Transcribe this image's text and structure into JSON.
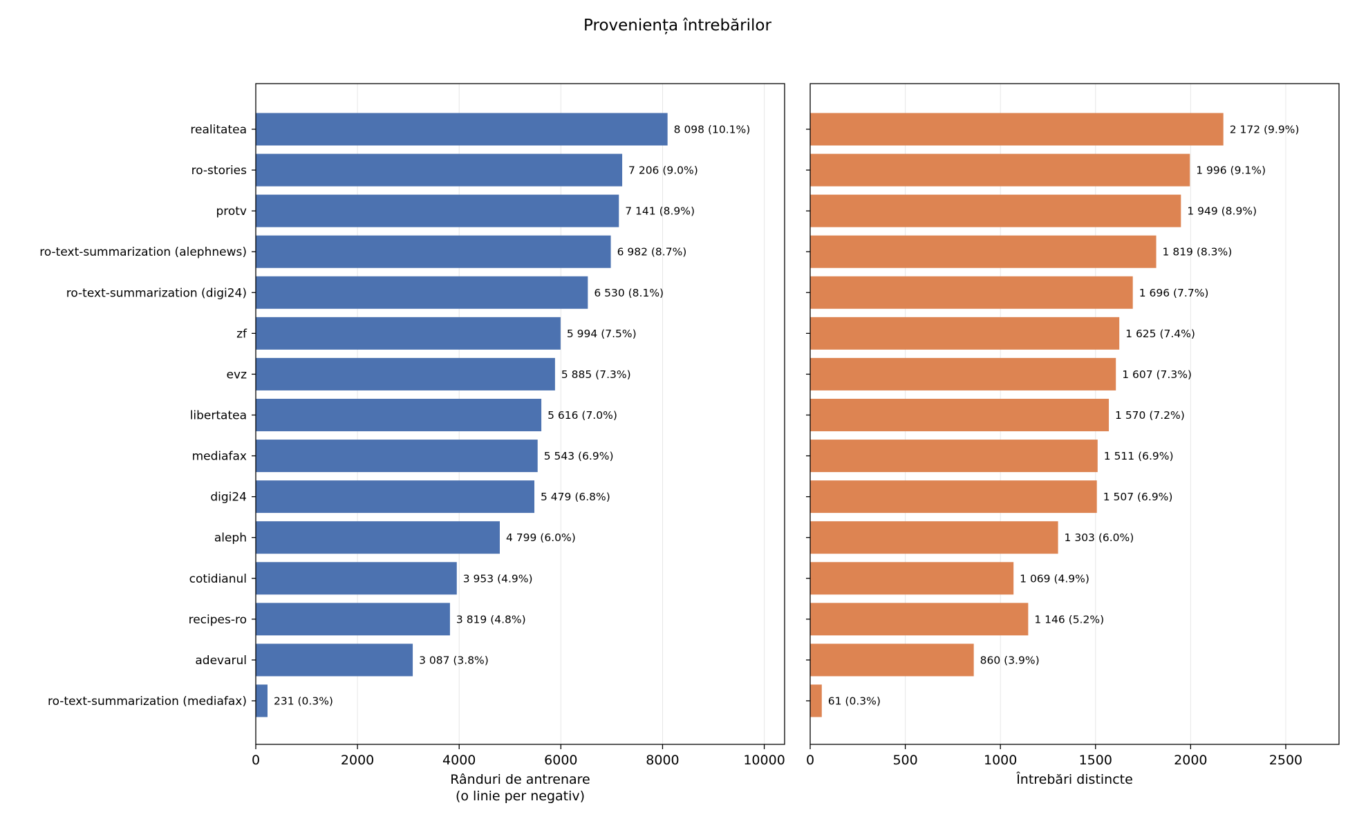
{
  "figure": {
    "title": "Proveniența întrebărilor"
  },
  "chart_data": [
    {
      "type": "bar",
      "orientation": "horizontal",
      "color": "#4c72b0",
      "xlabel": [
        "Rânduri de antrenare",
        "(o linie per negativ)"
      ],
      "xlim": [
        0,
        10400
      ],
      "xticks": [
        0,
        2000,
        4000,
        6000,
        8000,
        10000
      ],
      "grid": "vertical",
      "categories": [
        "realitatea",
        "ro-stories",
        "protv",
        "ro-text-summarization (alephnews)",
        "ro-text-summarization (digi24)",
        "zf",
        "evz",
        "libertatea",
        "mediafax",
        "digi24",
        "aleph",
        "cotidianul",
        "recipes-ro",
        "adevarul",
        "ro-text-summarization (mediafax)"
      ],
      "values": [
        8098,
        7206,
        7141,
        6982,
        6530,
        5994,
        5885,
        5616,
        5543,
        5479,
        4799,
        3953,
        3819,
        3087,
        231
      ],
      "data_labels": [
        "8 098  (10.1%)",
        "7 206  (9.0%)",
        "7 141  (8.9%)",
        "6 982  (8.7%)",
        "6 530  (8.1%)",
        "5 994  (7.5%)",
        "5 885  (7.3%)",
        "5 616  (7.0%)",
        "5 543  (6.9%)",
        "5 479  (6.8%)",
        "4 799  (6.0%)",
        "3 953  (4.9%)",
        "3 819  (4.8%)",
        "3 087  (3.8%)",
        "231  (0.3%)"
      ]
    },
    {
      "type": "bar",
      "orientation": "horizontal",
      "color": "#dd8452",
      "xlabel": [
        "Întrebări distincte"
      ],
      "xlim": [
        0,
        2780
      ],
      "xticks": [
        0,
        500,
        1000,
        1500,
        2000,
        2500
      ],
      "grid": "vertical",
      "categories": [
        "realitatea",
        "ro-stories",
        "protv",
        "ro-text-summarization (alephnews)",
        "ro-text-summarization (digi24)",
        "zf",
        "evz",
        "libertatea",
        "mediafax",
        "digi24",
        "aleph",
        "cotidianul",
        "recipes-ro",
        "adevarul",
        "ro-text-summarization (mediafax)"
      ],
      "values": [
        2172,
        1996,
        1949,
        1819,
        1696,
        1625,
        1607,
        1570,
        1511,
        1507,
        1303,
        1069,
        1146,
        860,
        61
      ],
      "data_labels": [
        "2 172  (9.9%)",
        "1 996  (9.1%)",
        "1 949  (8.9%)",
        "1 819  (8.3%)",
        "1 696  (7.7%)",
        "1 625  (7.4%)",
        "1 607  (7.3%)",
        "1 570  (7.2%)",
        "1 511  (6.9%)",
        "1 507  (6.9%)",
        "1 303  (6.0%)",
        "1 069  (4.9%)",
        "1 146  (5.2%)",
        "860  (3.9%)",
        "61  (0.3%)"
      ]
    }
  ]
}
